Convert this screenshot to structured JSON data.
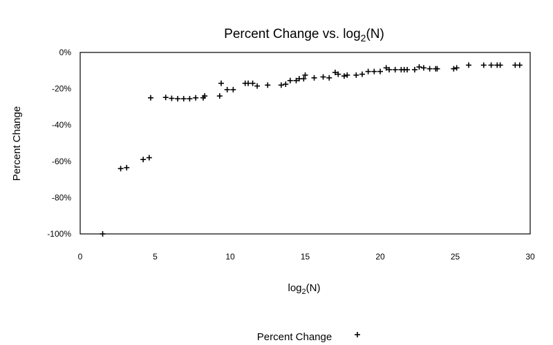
{
  "chart_data": {
    "type": "scatter",
    "title": "Percent Change vs. log",
    "title_sub": "2",
    "title_tail": "(N)",
    "xlabel": "log",
    "xlabel_sub": "2",
    "xlabel_tail": "(N)",
    "ylabel": "Percent Change",
    "xlim": [
      0,
      30
    ],
    "ylim": [
      -100,
      0
    ],
    "xticks": [
      0,
      5,
      10,
      15,
      20,
      25,
      30
    ],
    "yticks": [
      0,
      -20,
      -40,
      -60,
      -80,
      -100
    ],
    "ytick_labels": [
      "0%",
      "-20%",
      "-40%",
      "-60%",
      "-80%",
      "-100%"
    ],
    "grid": false,
    "legend_position": "bottom",
    "marker": "+",
    "marker_color": "#000000",
    "series": [
      {
        "name": "Percent Change",
        "x": [
          1.5,
          2.7,
          3.1,
          4.2,
          4.6,
          4.7,
          5.7,
          6.1,
          6.5,
          6.9,
          7.3,
          7.7,
          8.2,
          8.3,
          9.3,
          9.4,
          9.8,
          10.2,
          11.0,
          11.2,
          11.5,
          11.8,
          12.5,
          13.4,
          13.7,
          14.0,
          14.4,
          14.6,
          14.9,
          15.0,
          15.6,
          16.2,
          16.6,
          17.0,
          17.2,
          17.6,
          17.8,
          18.4,
          18.8,
          19.2,
          19.6,
          20.0,
          20.4,
          20.6,
          21.0,
          21.4,
          21.6,
          21.8,
          22.3,
          22.6,
          22.9,
          23.3,
          23.7,
          23.8,
          24.9,
          25.1,
          25.9,
          26.9,
          27.4,
          27.8,
          28.0,
          29.0,
          29.3
        ],
        "y": [
          -100,
          -64,
          -63.5,
          -59,
          -58,
          -25,
          -24.8,
          -25.3,
          -25.5,
          -25.5,
          -25.5,
          -25,
          -25,
          -24,
          -24,
          -17,
          -20.5,
          -20.5,
          -17,
          -17,
          -17,
          -18.5,
          -18,
          -18,
          -17.5,
          -15.5,
          -15.5,
          -14.5,
          -14.5,
          -12.5,
          -14,
          -13.5,
          -14,
          -11,
          -12,
          -13,
          -12.5,
          -12.5,
          -12,
          -10.5,
          -10.5,
          -10.5,
          -8.5,
          -9.5,
          -9.5,
          -9.5,
          -9.5,
          -9.5,
          -9.5,
          -8,
          -8.5,
          -9,
          -9,
          -9,
          -9,
          -8.5,
          -7,
          -7,
          -7,
          -7,
          -7,
          -7,
          -7
        ]
      }
    ]
  }
}
